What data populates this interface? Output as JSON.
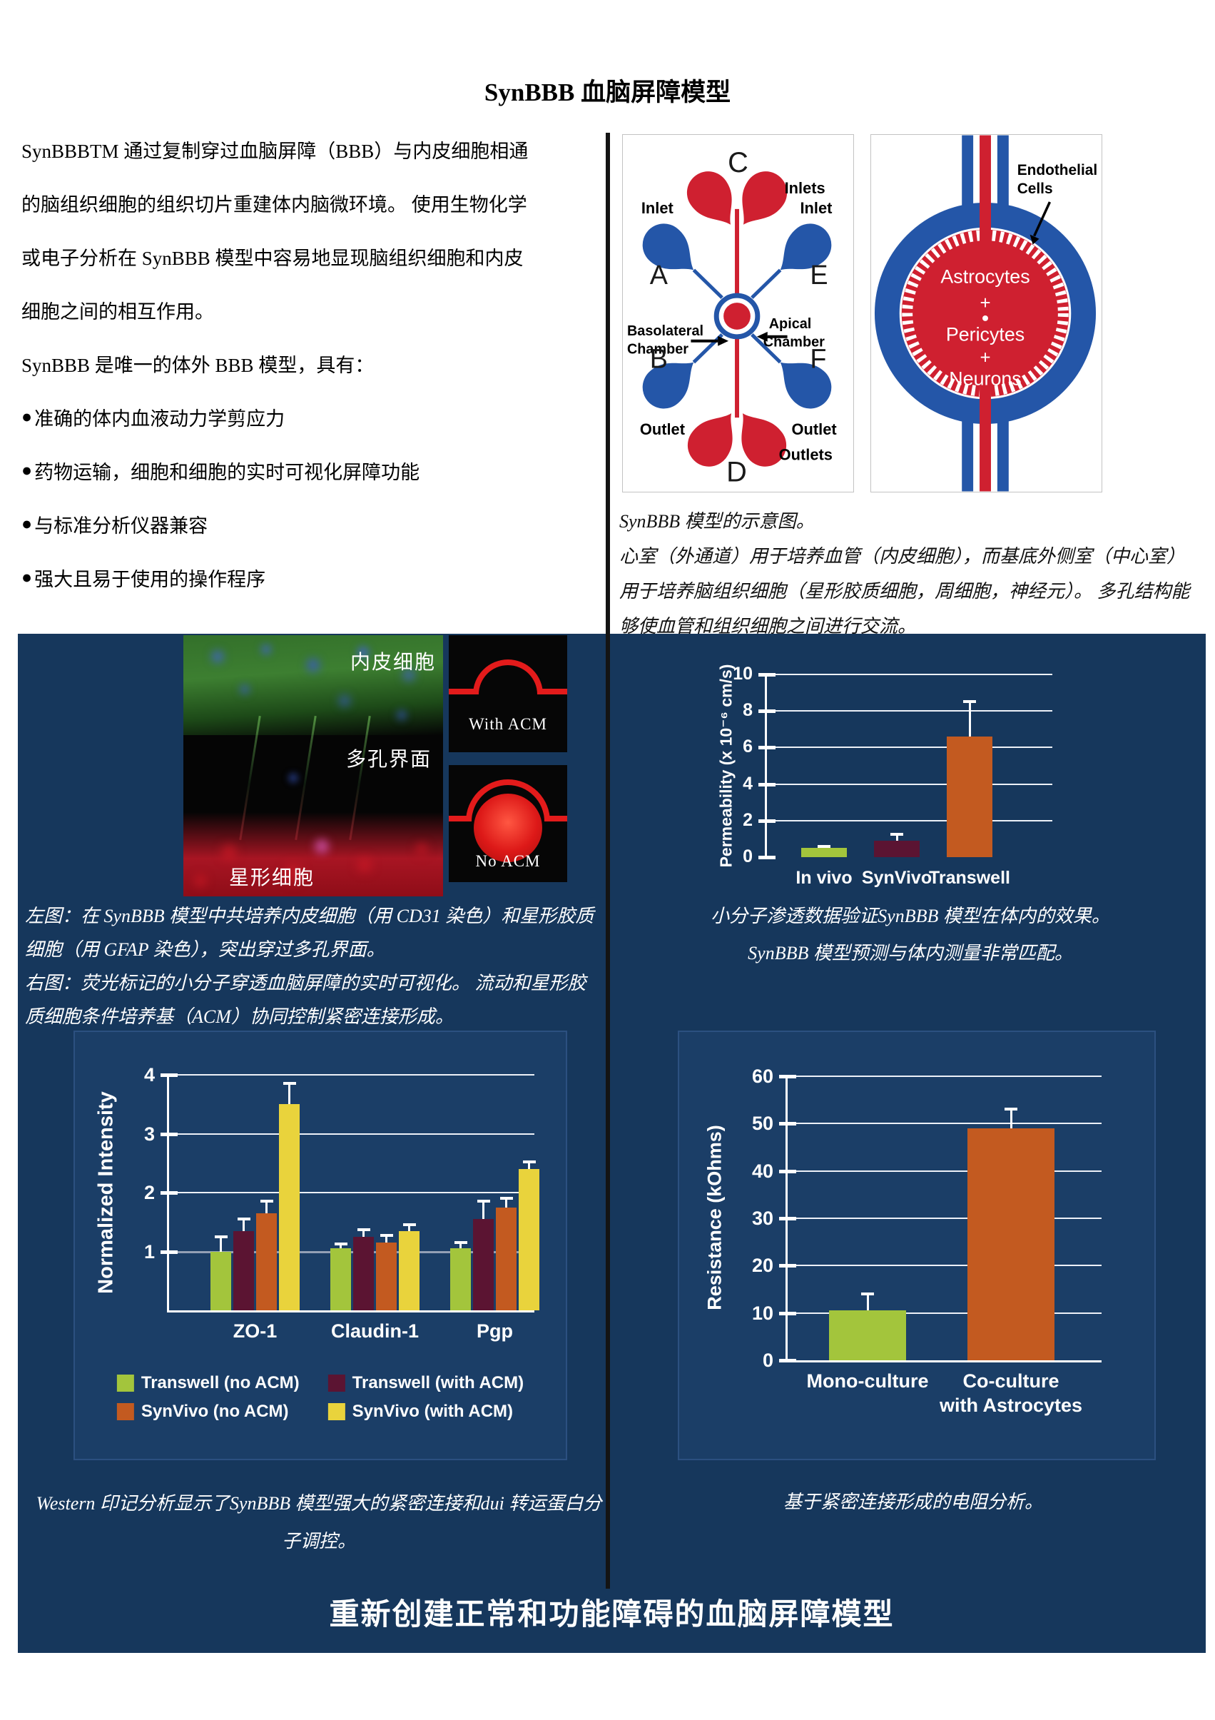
{
  "title": "SynBBB 血脑屏障模型",
  "intro": {
    "paragraph_lines": [
      "SynBBBTM 通过复制穿过血脑屏障（BBB）与内皮细胞相通",
      "的脑组织细胞的组织切片重建体内脑微环境。 使用生物化学",
      "或电子分析在 SynBBB 模型中容易地显现脑组织细胞和内皮",
      "细胞之间的相互作用。",
      "SynBBB 是唯一的体外 BBB 模型，具有："
    ],
    "bullet_glyph": "●",
    "bullets": [
      "准确的体内血液动力学剪应力",
      "药物运输，细胞和细胞的实时可视化屏障功能",
      "与标准分析仪器兼容",
      "强大且易于使用的操作程序"
    ]
  },
  "chip_diagram": {
    "labels": {
      "c": "C",
      "inlets": "Inlets",
      "inlet_left": "Inlet",
      "inlet_right": "Inlet",
      "a": "A",
      "e": "E",
      "basolateral_1": "Basolateral",
      "basolateral_2": "Chamber",
      "apical_1": "Apical",
      "apical_2": "Chamber",
      "b": "B",
      "f": "F",
      "outlet_left": "Outlet",
      "outlet_right": "Outlet",
      "outlets": "Outlets",
      "d": "D"
    }
  },
  "ring_diagram": {
    "labels": {
      "endothelial_1": "Endothelial",
      "endothelial_2": "Cells",
      "cell1": "Astrocytes",
      "plus1": "+",
      "cell2": "Pericytes",
      "plus2": "+",
      "cell3": "Neurons"
    }
  },
  "diagram_caption_lines": [
    "SynBBB 模型的示意图。",
    "心室（外通道）用于培养血管（内皮细胞），而基底外侧室（中心室）",
    "用于培养脑组织细胞（星形胶质细胞，周细胞，神经元）。 多孔结构能",
    "够使血管和组织细胞之间进行交流。"
  ],
  "fluorescence": {
    "label_top": "内皮细胞",
    "label_middle": "多孔界面",
    "label_bottom": "星形细胞"
  },
  "acm_panels": {
    "with_acm": "With ACM",
    "no_acm": "No ACM"
  },
  "fluor_caption_lines": [
    "左图：在 SynBBB 模型中共培养内皮细胞（用 CD31 染色）和星形胶质",
    "细胞（用 GFAP 染色），突出穿过多孔界面。",
    "右图：荧光标记的小分子穿透血脑屏障的实时可视化。 流动和星形胶",
    "质细胞条件培养基（ACM）协同控制紧密连接形成。"
  ],
  "perm_caption_lines": [
    "小分子渗透数据验证SynBBB 模型在体内的效果。",
    "SynBBB 模型预测与体内测量非常匹配。"
  ],
  "western_caption_lines": [
    "Western 印记分析显示了SynBBB 模型强大的紧密连接和dui 转运蛋白分",
    "子调控。"
  ],
  "resistance_caption": "基于紧密连接形成的电阻分析。",
  "footer_heading": "重新创建正常和功能障碍的血脑屏障模型",
  "colors": {
    "page_bg": "#ffffff",
    "navy_bg": "#16375c",
    "chart_panel_bg": "#1b3e67",
    "divider": "#141414",
    "diagram_red": "#cf2030",
    "diagram_blue": "#2456a8",
    "bar_green": "#a3c53c",
    "bar_maroon": "#5b1432",
    "bar_orange": "#c35a20",
    "bar_yellow": "#e9d33c",
    "grid_white": "#edf1f8",
    "baseline_gray": "#93a0b5"
  },
  "chart_data": [
    {
      "id": "permeability",
      "type": "bar",
      "ylabel": "Permeability (x 10⁻⁶ cm/s)",
      "categories": [
        "In vivo",
        "SynVivo",
        "Transwell"
      ],
      "values": [
        0.5,
        0.9,
        6.6
      ],
      "errors": [
        0.1,
        0.35,
        1.9
      ],
      "bar_colors": [
        "#a3c53c",
        "#5b1432",
        "#c35a20"
      ],
      "yticks": [
        0,
        2,
        4,
        6,
        8,
        10
      ],
      "ylim": [
        0,
        10
      ],
      "grid": true,
      "legend_position": "none"
    },
    {
      "id": "western_blot",
      "type": "grouped-bar",
      "ylabel": "Normalized Intensity",
      "categories": [
        "ZO-1",
        "Claudin-1",
        "Pgp"
      ],
      "series": [
        {
          "name": "Transwell (no ACM)",
          "color": "#a3c53c",
          "values": [
            1.0,
            1.05,
            1.05
          ],
          "errors": [
            0.25,
            0.08,
            0.1
          ]
        },
        {
          "name": "Transwell (with ACM)",
          "color": "#5b1432",
          "values": [
            1.35,
            1.25,
            1.55
          ],
          "errors": [
            0.2,
            0.12,
            0.3
          ]
        },
        {
          "name": "SynVivo (no ACM)",
          "color": "#c35a20",
          "values": [
            1.65,
            1.15,
            1.75
          ],
          "errors": [
            0.2,
            0.12,
            0.15
          ]
        },
        {
          "name": "SynVivo (with ACM)",
          "color": "#e9d33c",
          "values": [
            3.5,
            1.35,
            2.4
          ],
          "errors": [
            0.35,
            0.1,
            0.12
          ]
        }
      ],
      "yticks": [
        1,
        2,
        3,
        4
      ],
      "ylim": [
        0,
        4
      ],
      "baseline_at": 1,
      "grid": true,
      "legend_position": "bottom"
    },
    {
      "id": "resistance",
      "type": "bar",
      "ylabel": "Resistance (kOhms)",
      "categories": [
        "Mono-culture",
        "Co-culture\nwith Astrocytes"
      ],
      "values": [
        10.5,
        49
      ],
      "errors": [
        3.5,
        4
      ],
      "bar_colors": [
        "#a3c53c",
        "#c35a20"
      ],
      "yticks": [
        0,
        10,
        20,
        30,
        40,
        50,
        60
      ],
      "ylim": [
        0,
        60
      ],
      "grid": true,
      "legend_position": "none"
    }
  ]
}
